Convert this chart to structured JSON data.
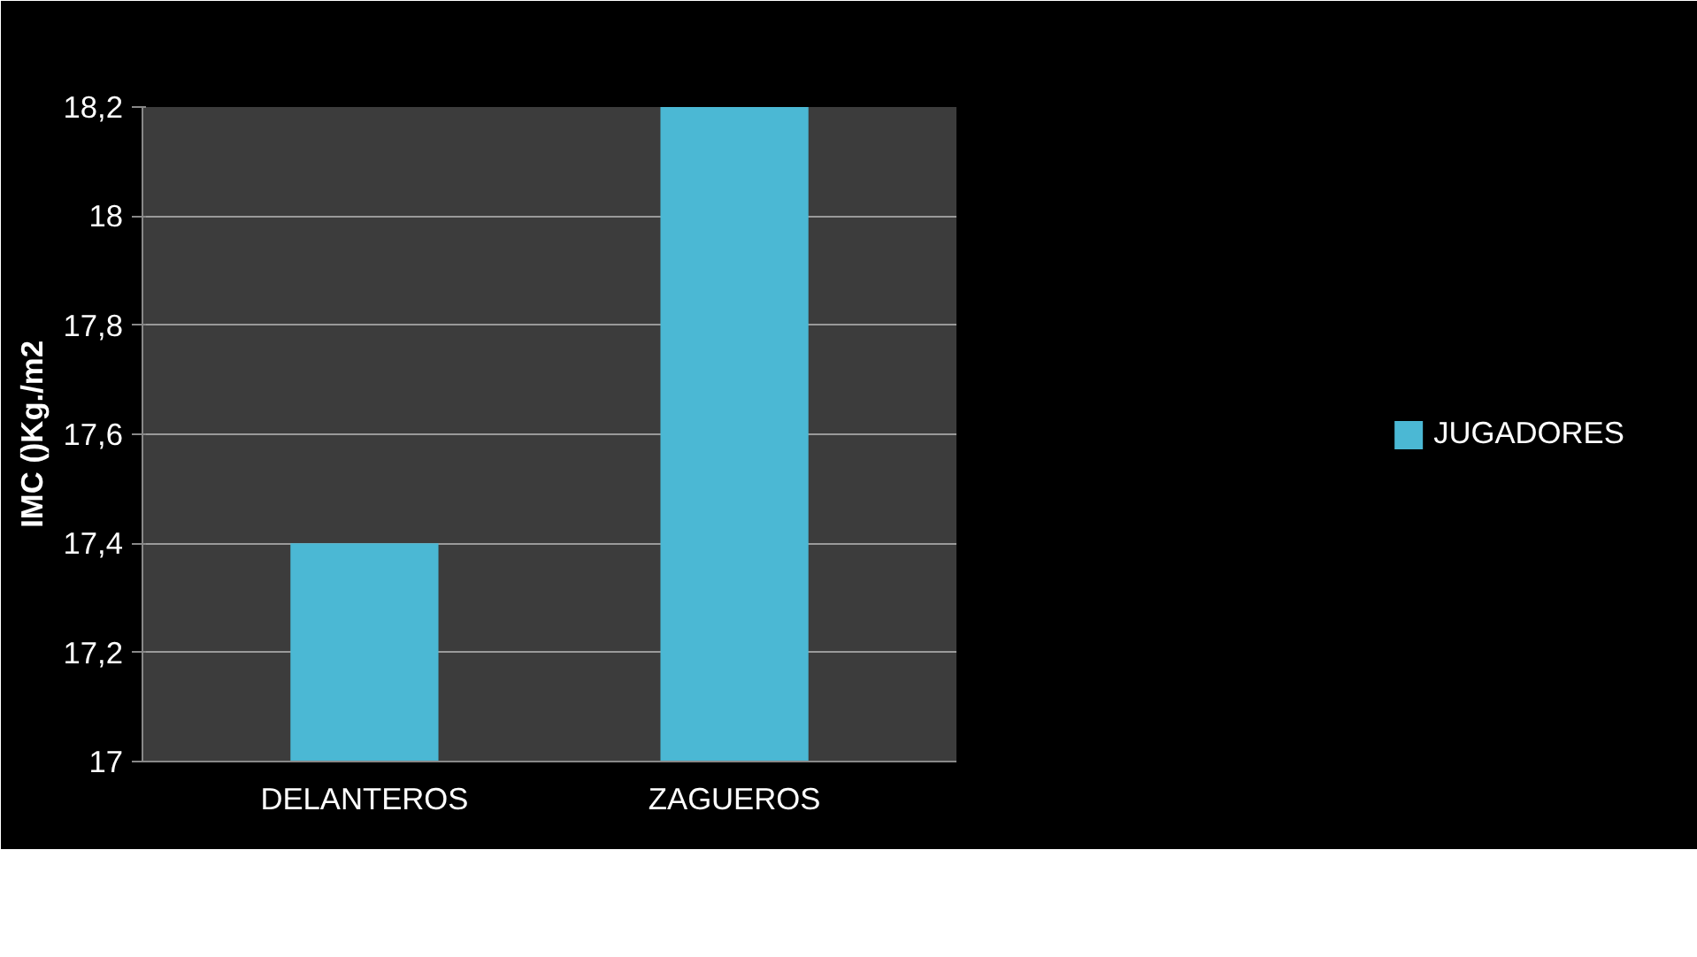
{
  "chart_data": {
    "type": "bar",
    "ylabel": "IMC ()Kg./m2",
    "categories": [
      "DELANTEROS",
      "ZAGUEROS"
    ],
    "series": [
      {
        "name": "JUGADORES",
        "color": "#4bb8d4",
        "values": [
          17.4,
          18.2
        ]
      }
    ],
    "ylim": [
      17,
      18.2
    ],
    "yticks": [
      17,
      {
        "value": 17.2,
        "label": "17,2"
      },
      {
        "value": 17.4,
        "label": "17,4"
      },
      {
        "value": 17.6,
        "label": "17,6"
      },
      {
        "value": 17.8,
        "label": "17,8"
      },
      18,
      {
        "value": 18.2,
        "label": "18,2"
      }
    ],
    "grid": "y",
    "legend": "right"
  }
}
